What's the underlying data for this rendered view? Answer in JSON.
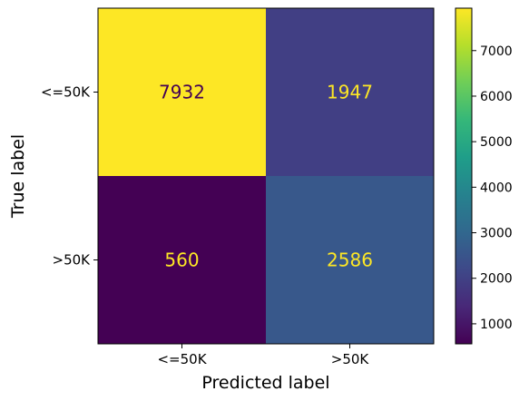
{
  "chart_data": {
    "type": "heatmap",
    "title": "",
    "xlabel": "Predicted label",
    "ylabel": "True label",
    "x_categories": [
      "<=50K",
      ">50K"
    ],
    "y_categories": [
      "<=50K",
      ">50K"
    ],
    "values": [
      [
        7932,
        1947
      ],
      [
        560,
        2586
      ]
    ],
    "colormap": "viridis",
    "colorbar": {
      "min": 560,
      "max": 7932,
      "ticks": [
        1000,
        2000,
        3000,
        4000,
        5000,
        6000,
        7000
      ]
    },
    "cell_text_colors": {
      "dark_cell": "#fde725",
      "light_cell": "#440154"
    },
    "grid": false
  }
}
